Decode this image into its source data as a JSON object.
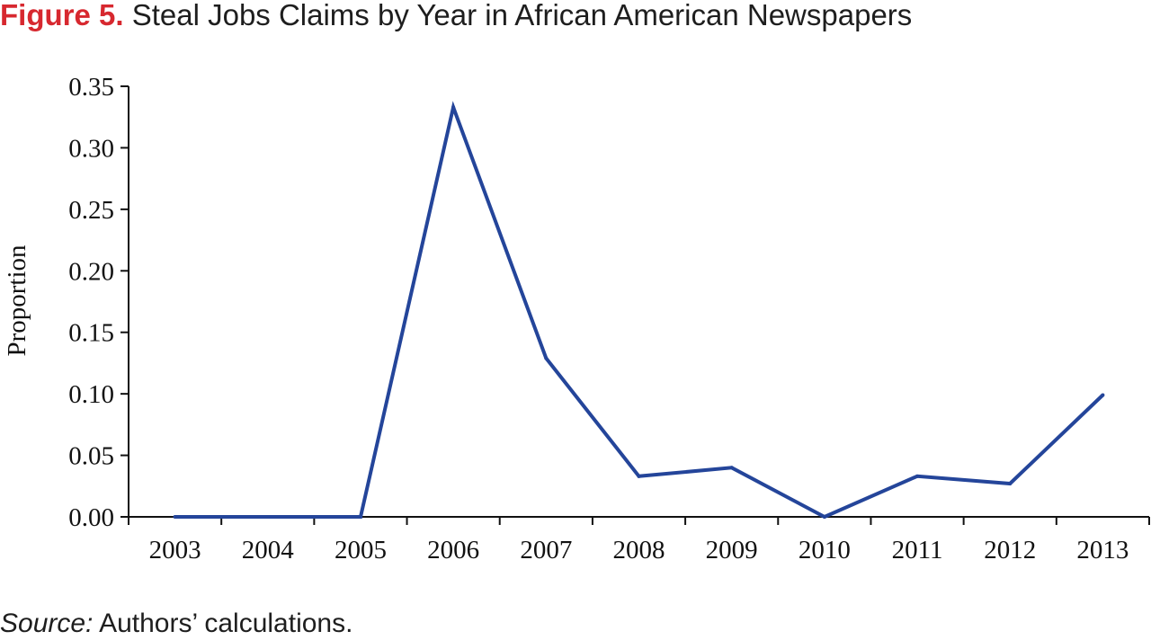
{
  "figure": {
    "label": "Figure 5.",
    "title": "Steal Jobs Claims by Year in African American Newspapers"
  },
  "source": {
    "label": "Source:",
    "text": "Authors’ calculations."
  },
  "chart_data": {
    "type": "line",
    "title": "Steal Jobs Claims by Year in African American Newspapers",
    "xlabel": "",
    "ylabel": "Proportion",
    "categories": [
      "2003",
      "2004",
      "2005",
      "2006",
      "2007",
      "2008",
      "2009",
      "2010",
      "2011",
      "2012",
      "2013"
    ],
    "series": [
      {
        "values": [
          0.0,
          0.0,
          0.0,
          0.333,
          0.129,
          0.033,
          0.04,
          0.0,
          0.033,
          0.027,
          0.099
        ],
        "color": "#24459a"
      }
    ],
    "ylim": [
      0,
      0.35
    ],
    "yticks": [
      "0.00",
      "0.05",
      "0.10",
      "0.15",
      "0.20",
      "0.25",
      "0.30",
      "0.35"
    ],
    "grid": false,
    "legend": "none"
  }
}
